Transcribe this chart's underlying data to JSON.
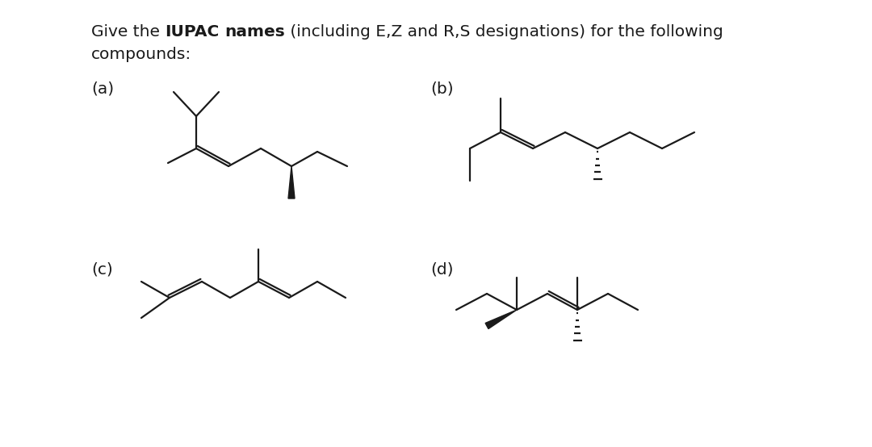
{
  "bg_color": "#ffffff",
  "text_color": "#1a1a1a",
  "label_a": "(a)",
  "label_b": "(b)",
  "label_c": "(c)",
  "label_d": "(d)",
  "title_normal_1": "Give the ",
  "title_bold_1": "IUPAC",
  "title_normal_2": " ",
  "title_bold_2": "names",
  "title_normal_3": " (including E,Z and R,S designations) for the following",
  "title_line2": "compounds:",
  "title_fontsize": 14.5,
  "label_fontsize": 14.5,
  "lw": 1.6
}
